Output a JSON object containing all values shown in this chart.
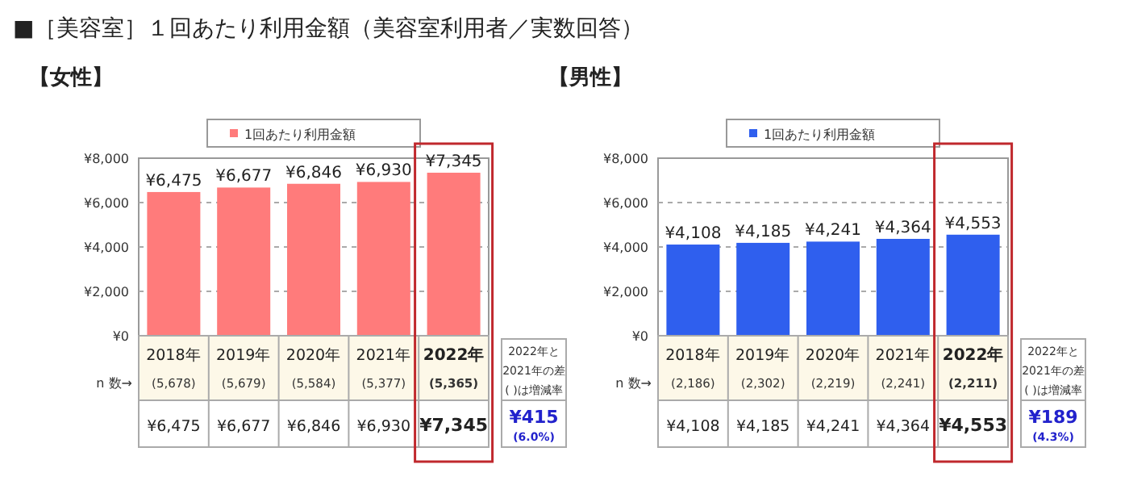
{
  "chart_data": [
    {
      "type": "bar",
      "title": "■［美容室］１回あたり利用金額（美容室利用者／実数回答）",
      "subtitle": "【女性】",
      "categories": [
        "2018年\n(5,678)",
        "2019年\n(5,679)",
        "2020年\n(5,584)",
        "2021年\n(5,377)",
        "2022年\n(5,365)"
      ],
      "series": [
        {
          "name": "1回あたり利用金額",
          "color": "#ff7b7b",
          "values": [
            6475,
            6677,
            6846,
            6930,
            7345
          ],
          "value_labels": [
            "¥6,475",
            "¥6,677",
            "¥6,846",
            "¥6,930",
            "¥7,345"
          ]
        }
      ],
      "ylim": [
        0,
        8000
      ],
      "yticks": [
        {
          "value": 0,
          "label": "¥0"
        },
        {
          "value": 2000,
          "label": "¥2,000"
        },
        {
          "value": 4000,
          "label": "¥4,000"
        },
        {
          "value": 6000,
          "label": "¥6,000"
        },
        {
          "value": 8000,
          "label": "¥8,000"
        }
      ],
      "grid": "y",
      "legend": "top",
      "annotations": [
        "n 数→",
        "2022年と\n2021年の差\n( )は増減率",
        "¥415",
        "(6.0%)"
      ]
    },
    {
      "type": "bar",
      "subtitle": "【男性】",
      "categories": [
        "2018年\n(2,186)",
        "2019年\n(2,302)",
        "2020年\n(2,219)",
        "2021年\n(2,241)",
        "2022年\n(2,211)"
      ],
      "series": [
        {
          "name": "1回あたり利用金額",
          "color": "#2f5fee",
          "values": [
            4108,
            4185,
            4241,
            4364,
            4553
          ],
          "value_labels": [
            "¥4,108",
            "¥4,185",
            "¥4,241",
            "¥4,364",
            "¥4,553"
          ]
        }
      ],
      "ylim": [
        0,
        8000
      ],
      "yticks": [
        {
          "value": 0,
          "label": "¥0"
        },
        {
          "value": 2000,
          "label": "¥2,000"
        },
        {
          "value": 4000,
          "label": "¥4,000"
        },
        {
          "value": 6000,
          "label": "¥6,000"
        },
        {
          "value": 8000,
          "label": "¥8,000"
        }
      ],
      "grid": "y",
      "legend": "top",
      "annotations": [
        "n 数→",
        "2022年と\n2021年の差\n( )は増減率",
        "¥189",
        "(4.3%)"
      ]
    }
  ]
}
